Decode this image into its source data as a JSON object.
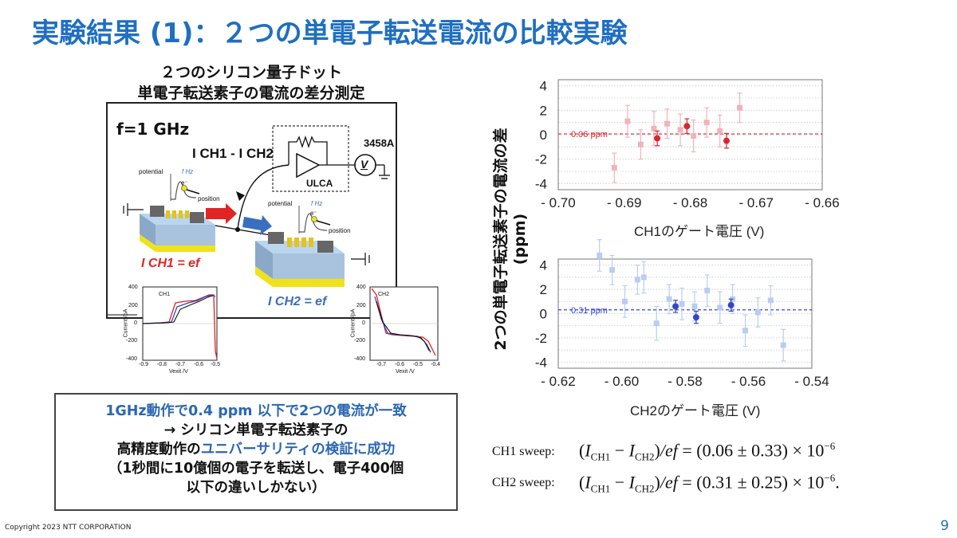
{
  "slide": {
    "title": "実験結果 (1)：２つの単電子転送電流の比較実験",
    "copyright": "Copyright 2023 NTT CORPORATION",
    "page_number": "9"
  },
  "diagram": {
    "subtitle_line1": "２つのシリコン量子ドット",
    "subtitle_line2": "単電子転送素子の電流の差分測定",
    "frequency": "f=1 GHz",
    "current_diff": "I CH1 - I CH2",
    "meter": "3458A",
    "meter_symbol": "V",
    "amplifier": "ULCA",
    "ch1_current": "I CH1 = ef",
    "ch2_current": "I CH2 = ef",
    "potential_label": "potential",
    "position_label": "position",
    "f_hz_label": "f Hz",
    "electron_label": "e⁻",
    "inset_ch1": {
      "tag": "CH1",
      "ylabel": "Current /pA",
      "xlabel": "Vexit /V",
      "yticks": [
        "400",
        "200",
        "0",
        "-200",
        "-400"
      ],
      "xticks": [
        "-0.9",
        "-0.8",
        "-0.7",
        "-0.6",
        "-0.5"
      ]
    },
    "inset_ch2": {
      "tag": "CH2",
      "ylabel": "Current /pA",
      "xlabel": "Vexit /V",
      "yticks": [
        "400",
        "200",
        "0",
        "-200",
        "-400"
      ],
      "xticks": [
        "-0.7",
        "-0.6",
        "-0.5",
        "-0.4"
      ]
    }
  },
  "summary": {
    "line1": "1GHz動作で0.4 ppm 以下で2つの電流が一致",
    "line2": "→ シリコン単電子転送素子の",
    "line3_prefix": "高精度動作の",
    "line3_highlight": "ユニバーサリティの検証に成功",
    "line4": "（1秒間に10億個の電子を転送し、電子400個",
    "line5": "以下の違いしかない）"
  },
  "chart_shared_ylabel_line1": "2つの単電子転送素子の電流の差",
  "chart_shared_ylabel_line2": "(ppm)",
  "chart_data": [
    {
      "type": "scatter",
      "xlabel": "CH1のゲート電圧 (V)",
      "xlim": [
        -0.7,
        -0.66
      ],
      "ylim": [
        -4.5,
        4.5
      ],
      "xticks": [
        "- 0.70",
        "- 0.69",
        "- 0.68",
        "- 0.67",
        "- 0.66"
      ],
      "yticks": [
        "4",
        "2",
        "0",
        "-2",
        "-4"
      ],
      "grid": true,
      "mean_label": "0.06 ppm",
      "mean": 0.06,
      "colors": {
        "faint": "#f0b4b8",
        "strong": "#d9262e"
      },
      "series": [
        {
          "x": [
            -0.6915,
            -0.6895,
            -0.6875,
            -0.6855,
            -0.6835,
            -0.6815,
            -0.6795,
            -0.6775,
            -0.6755,
            -0.6725
          ],
          "y": [
            -2.7,
            1.1,
            -0.8,
            0.5,
            0.9,
            0.4,
            -0.1,
            1.0,
            0.3,
            2.2
          ],
          "err": [
            1.2,
            1.3,
            1.2,
            1.4,
            1.2,
            1.3,
            1.3,
            1.2,
            1.3,
            1.2
          ]
        },
        {
          "x": [
            -0.685,
            -0.6805,
            -0.6745
          ],
          "y": [
            -0.3,
            0.7,
            -0.5
          ],
          "err": [
            0.6,
            0.6,
            0.6
          ]
        }
      ]
    },
    {
      "type": "scatter",
      "xlabel": "CH2のゲート電圧 (V)",
      "xlim": [
        -0.62,
        -0.54
      ],
      "ylim": [
        -4.5,
        4.5
      ],
      "xticks": [
        "- 0.62",
        "- 0.60",
        "- 0.58",
        "- 0.56",
        "- 0.54"
      ],
      "yticks": [
        "4",
        "2",
        "0",
        "-2",
        "-4"
      ],
      "grid": true,
      "mean_label": "0.31 ppm",
      "mean": 0.31,
      "colors": {
        "faint": "#b9cdf1",
        "strong": "#3444cc"
      },
      "series": [
        {
          "x": [
            -0.607,
            -0.603,
            -0.599,
            -0.595,
            -0.593,
            -0.589,
            -0.585,
            -0.581,
            -0.577,
            -0.573,
            -0.569,
            -0.565,
            -0.561,
            -0.557,
            -0.553,
            -0.549
          ],
          "y": [
            4.8,
            3.6,
            1.0,
            2.8,
            3.0,
            -0.8,
            1.2,
            0.8,
            0.6,
            1.9,
            0.5,
            1.2,
            -1.4,
            0.1,
            1.1,
            -2.6
          ],
          "err": [
            1.3,
            1.2,
            1.3,
            1.2,
            1.3,
            1.4,
            1.2,
            1.3,
            1.2,
            1.3,
            1.3,
            1.2,
            1.3,
            1.2,
            1.2,
            1.3
          ]
        },
        {
          "x": [
            -0.583,
            -0.5765,
            -0.5655
          ],
          "y": [
            0.6,
            -0.3,
            0.7
          ],
          "err": [
            0.5,
            0.5,
            0.5
          ]
        }
      ]
    }
  ],
  "formulas": {
    "ch1_label": "CH1 sweep:",
    "ch2_label": "CH2 sweep:",
    "I": "I",
    "sub_ch1": "CH1",
    "sub_ch2": "CH2",
    "minus": " − ",
    "ef": "/ef",
    "eq": " = ",
    "ch1_value": "(0.06 ± 0.33) × 10",
    "ch2_value": "(0.31 ± 0.25) × 10",
    "exponent": "−6",
    "ch2_period": "."
  }
}
